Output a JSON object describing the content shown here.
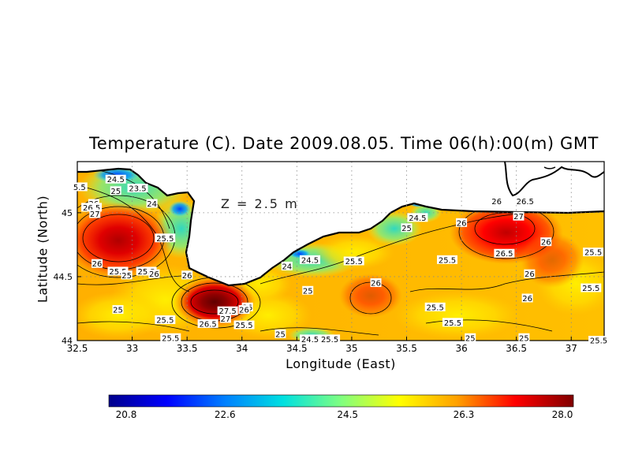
{
  "title": "Temperature (C). Date 2009.08.05. Time 06(h):00(m) GMT",
  "depth_label": "Z = 2.5 m",
  "xlabel": "Longitude (East)",
  "ylabel": "Latitude (North)",
  "x_ticks": [
    "32.5",
    "33",
    "33.5",
    "34",
    "34.5",
    "35",
    "35.5",
    "36",
    "36.5",
    "37"
  ],
  "y_ticks": [
    "44",
    "44.5",
    "45"
  ],
  "colorbar": {
    "min": 20.8,
    "max": 28.0,
    "labels": [
      "20.8",
      "22.6",
      "24.5",
      "26.3",
      "28.0"
    ],
    "colors": [
      "#00008b",
      "#0000ff",
      "#0080ff",
      "#00e0e0",
      "#80ff80",
      "#ffff00",
      "#ffa000",
      "#ff0000",
      "#800000"
    ]
  },
  "chart_data": {
    "type": "heatmap",
    "title": "Temperature (C). Date 2009.08.05. Time 06(h):00(m) GMT",
    "xlabel": "Longitude (East)",
    "ylabel": "Latitude (North)",
    "xlim": [
      32.5,
      37.3
    ],
    "ylim": [
      44.0,
      45.4
    ],
    "value_range": [
      20.8,
      28.0
    ],
    "contour_labels": [
      {
        "lon": 32.52,
        "lat": 45.2,
        "text": "5.5"
      },
      {
        "lon": 32.85,
        "lat": 45.26,
        "text": "24.5"
      },
      {
        "lon": 32.85,
        "lat": 45.17,
        "text": "25"
      },
      {
        "lon": 33.05,
        "lat": 45.19,
        "text": "23.5"
      },
      {
        "lon": 33.18,
        "lat": 45.07,
        "text": "24"
      },
      {
        "lon": 32.65,
        "lat": 45.07,
        "text": "26"
      },
      {
        "lon": 32.63,
        "lat": 45.04,
        "text": "26.5"
      },
      {
        "lon": 32.66,
        "lat": 44.99,
        "text": "27"
      },
      {
        "lon": 33.3,
        "lat": 44.8,
        "text": "25.5"
      },
      {
        "lon": 32.68,
        "lat": 44.6,
        "text": "26"
      },
      {
        "lon": 32.87,
        "lat": 44.54,
        "text": "25.5"
      },
      {
        "lon": 32.95,
        "lat": 44.51,
        "text": "25"
      },
      {
        "lon": 33.13,
        "lat": 44.54,
        "text": "25.5"
      },
      {
        "lon": 33.2,
        "lat": 44.52,
        "text": "26"
      },
      {
        "lon": 33.5,
        "lat": 44.51,
        "text": "26"
      },
      {
        "lon": 32.87,
        "lat": 44.24,
        "text": "25"
      },
      {
        "lon": 33.3,
        "lat": 44.16,
        "text": "25.5"
      },
      {
        "lon": 33.35,
        "lat": 44.02,
        "text": "25.5"
      },
      {
        "lon": 33.87,
        "lat": 44.23,
        "text": "27.5"
      },
      {
        "lon": 33.85,
        "lat": 44.17,
        "text": "27"
      },
      {
        "lon": 33.69,
        "lat": 44.13,
        "text": "26.5"
      },
      {
        "lon": 34.05,
        "lat": 44.26,
        "text": "26"
      },
      {
        "lon": 34.02,
        "lat": 44.12,
        "text": "25.5"
      },
      {
        "lon": 34.02,
        "lat": 44.24,
        "text": "26"
      },
      {
        "lon": 34.35,
        "lat": 44.05,
        "text": "25"
      },
      {
        "lon": 34.62,
        "lat": 44.01,
        "text": "24.5"
      },
      {
        "lon": 34.8,
        "lat": 44.01,
        "text": "25.5"
      },
      {
        "lon": 34.41,
        "lat": 44.58,
        "text": "24"
      },
      {
        "lon": 34.62,
        "lat": 44.63,
        "text": "24.5"
      },
      {
        "lon": 35.02,
        "lat": 44.62,
        "text": "25.5"
      },
      {
        "lon": 34.6,
        "lat": 44.39,
        "text": "25"
      },
      {
        "lon": 35.22,
        "lat": 44.45,
        "text": "26"
      },
      {
        "lon": 35.5,
        "lat": 44.88,
        "text": "25"
      },
      {
        "lon": 35.6,
        "lat": 44.96,
        "text": "24.5"
      },
      {
        "lon": 36.0,
        "lat": 44.92,
        "text": "26"
      },
      {
        "lon": 35.87,
        "lat": 44.63,
        "text": "25.5"
      },
      {
        "lon": 35.76,
        "lat": 44.26,
        "text": "25.5"
      },
      {
        "lon": 35.92,
        "lat": 44.14,
        "text": "25.5"
      },
      {
        "lon": 36.32,
        "lat": 45.09,
        "text": "26"
      },
      {
        "lon": 36.58,
        "lat": 45.09,
        "text": "26.5"
      },
      {
        "lon": 36.52,
        "lat": 44.97,
        "text": "27"
      },
      {
        "lon": 36.39,
        "lat": 44.68,
        "text": "26.5"
      },
      {
        "lon": 36.77,
        "lat": 44.77,
        "text": "26"
      },
      {
        "lon": 36.62,
        "lat": 44.52,
        "text": "26"
      },
      {
        "lon": 36.6,
        "lat": 44.33,
        "text": "26"
      },
      {
        "lon": 37.18,
        "lat": 44.41,
        "text": "25.5"
      },
      {
        "lon": 37.2,
        "lat": 44.69,
        "text": "25.5"
      },
      {
        "lon": 36.08,
        "lat": 44.02,
        "text": "25"
      },
      {
        "lon": 36.57,
        "lat": 44.02,
        "text": "25"
      },
      {
        "lon": 37.25,
        "lat": 44.0,
        "text": "25.5"
      }
    ],
    "hotspots": [
      {
        "lon": 32.75,
        "lat": 44.85,
        "max": 27.0
      },
      {
        "lon": 33.75,
        "lat": 44.28,
        "max": 27.5
      },
      {
        "lon": 36.45,
        "lat": 44.97,
        "max": 27.0
      }
    ],
    "grid": true
  }
}
